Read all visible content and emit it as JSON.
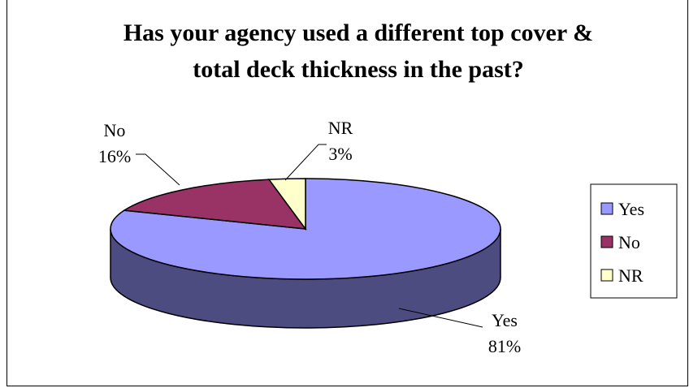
{
  "chart_data": {
    "type": "pie",
    "title_lines": [
      "Has your agency used a different top cover &",
      "total deck thickness in the past?"
    ],
    "categories": [
      "Yes",
      "No",
      "NR"
    ],
    "values": [
      81,
      16,
      3
    ],
    "data_labels": [
      {
        "category": "Yes",
        "percent": "81%"
      },
      {
        "category": "No",
        "percent": "16%"
      },
      {
        "category": "NR",
        "percent": "3%"
      }
    ],
    "colors": [
      "#9999ff",
      "#993366",
      "#ffffcc"
    ],
    "side_colors": [
      "#4c4c80",
      "#4d1a33",
      "#808066"
    ],
    "legend_position": "right",
    "three_d": true
  }
}
